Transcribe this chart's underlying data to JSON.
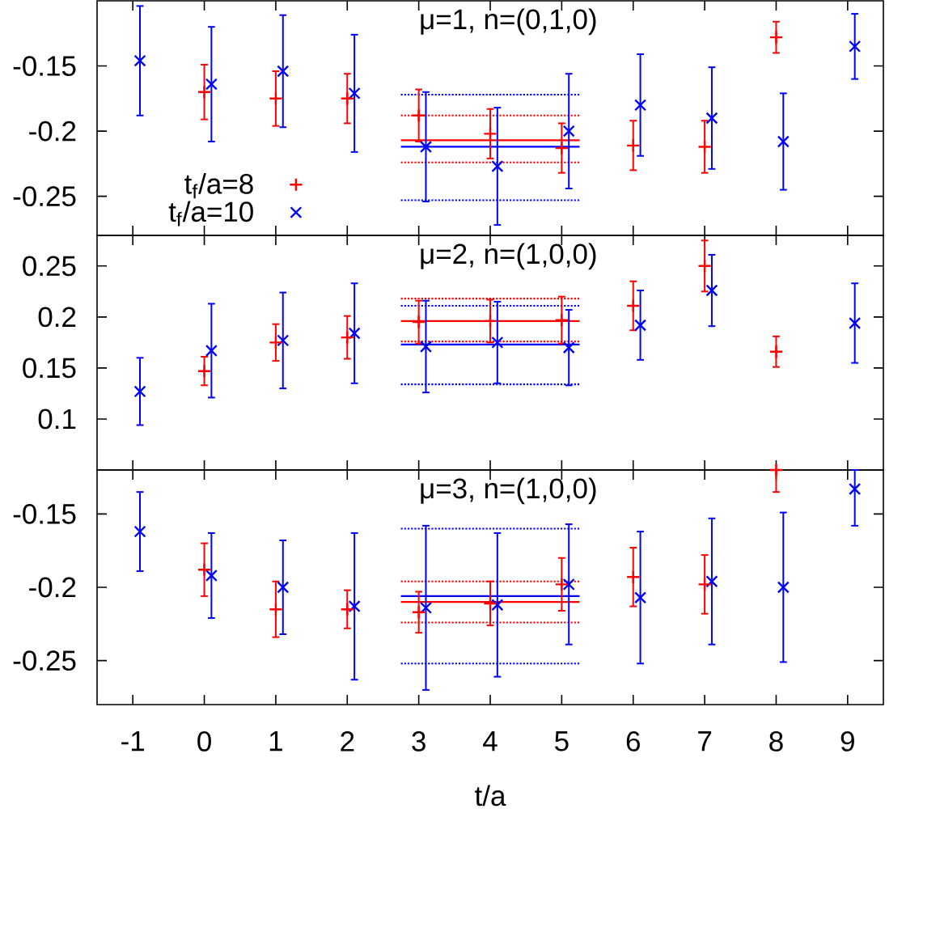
{
  "chart_data": [
    {
      "type": "scatter",
      "title": "μ=1, n=(0,1,0)",
      "xlim": [
        -1.5,
        9.5
      ],
      "xticks": [
        -1,
        0,
        1,
        2,
        3,
        4,
        5,
        6,
        7,
        8,
        9
      ],
      "ylim": [
        -0.28,
        -0.1
      ],
      "yticks": [
        -0.25,
        -0.2,
        -0.15
      ],
      "tick_labels": "y",
      "legend": "bottom left",
      "series": [
        {
          "type": "line",
          "color": "#ff0000",
          "x": [
            2.75,
            5.25
          ],
          "values": [
            -0.207,
            -0.207
          ],
          "line_style": "solid"
        },
        {
          "type": "line",
          "color": "#ff0000",
          "x": [
            2.75,
            5.25
          ],
          "values": [
            -0.188,
            -0.188
          ],
          "line_style": "dotted"
        },
        {
          "type": "line",
          "color": "#ff0000",
          "x": [
            2.75,
            5.25
          ],
          "values": [
            -0.224,
            -0.224
          ],
          "line_style": "dotted"
        },
        {
          "type": "line",
          "color": "#0000ff",
          "x": [
            2.75,
            5.25
          ],
          "values": [
            -0.212,
            -0.212
          ],
          "line_style": "solid"
        },
        {
          "type": "line",
          "color": "#0000ff",
          "x": [
            2.75,
            5.25
          ],
          "values": [
            -0.172,
            -0.172
          ],
          "line_style": "dotted"
        },
        {
          "type": "line",
          "color": "#0000ff",
          "x": [
            2.75,
            5.25
          ],
          "values": [
            -0.253,
            -0.253
          ],
          "line_style": "dotted"
        },
        {
          "name": "t$_{f}$/a=8",
          "color": "#ff0000",
          "marker": "plus",
          "x": [
            0,
            1,
            2,
            3,
            4,
            5,
            6,
            7,
            8
          ],
          "values": [
            -0.17,
            -0.175,
            -0.175,
            -0.188,
            -0.202,
            -0.213,
            -0.211,
            -0.212,
            -0.128
          ],
          "errors": [
            0.021,
            0.021,
            0.019,
            0.02,
            0.019,
            0.019,
            0.019,
            0.02,
            0.012
          ]
        },
        {
          "name": "t$_{f}$/a=10",
          "color": "#0000ff",
          "marker": "cross",
          "x": [
            -0.9,
            0.1,
            1.1,
            2.1,
            3.1,
            4.1,
            5.1,
            6.1,
            7.1,
            8.1,
            9.1
          ],
          "values": [
            -0.146,
            -0.164,
            -0.154,
            -0.171,
            -0.212,
            -0.227,
            -0.2,
            -0.18,
            -0.19,
            -0.208,
            -0.135
          ],
          "errors": [
            0.042,
            0.044,
            0.043,
            0.045,
            0.042,
            0.045,
            0.044,
            0.039,
            0.039,
            0.037,
            0.025
          ]
        }
      ]
    },
    {
      "type": "scatter",
      "title": "μ=2, n=(1,0,0)",
      "xlim": [
        -1.5,
        9.5
      ],
      "xticks": [
        -1,
        0,
        1,
        2,
        3,
        4,
        5,
        6,
        7,
        8,
        9
      ],
      "ylim": [
        0.05,
        0.28
      ],
      "yticks": [
        0.1,
        0.15,
        0.2,
        0.25
      ],
      "tick_labels": "y",
      "series": [
        {
          "type": "line",
          "color": "#ff0000",
          "x": [
            2.75,
            5.25
          ],
          "values": [
            0.196,
            0.196
          ],
          "line_style": "solid"
        },
        {
          "type": "line",
          "color": "#ff0000",
          "x": [
            2.75,
            5.25
          ],
          "values": [
            0.218,
            0.218
          ],
          "line_style": "dotted"
        },
        {
          "type": "line",
          "color": "#ff0000",
          "x": [
            2.75,
            5.25
          ],
          "values": [
            0.176,
            0.176
          ],
          "line_style": "dotted"
        },
        {
          "type": "line",
          "color": "#0000ff",
          "x": [
            2.75,
            5.25
          ],
          "values": [
            0.173,
            0.173
          ],
          "line_style": "solid"
        },
        {
          "type": "line",
          "color": "#0000ff",
          "x": [
            2.75,
            5.25
          ],
          "values": [
            0.211,
            0.211
          ],
          "line_style": "dotted"
        },
        {
          "type": "line",
          "color": "#0000ff",
          "x": [
            2.75,
            5.25
          ],
          "values": [
            0.134,
            0.134
          ],
          "line_style": "dotted"
        },
        {
          "color": "#ff0000",
          "marker": "plus",
          "x": [
            0,
            1,
            2,
            3,
            4,
            5,
            6,
            7,
            8
          ],
          "values": [
            0.147,
            0.175,
            0.18,
            0.195,
            0.196,
            0.197,
            0.211,
            0.25,
            0.166
          ],
          "errors": [
            0.014,
            0.018,
            0.021,
            0.021,
            0.021,
            0.023,
            0.024,
            0.025,
            0.015
          ]
        },
        {
          "color": "#0000ff",
          "marker": "cross",
          "x": [
            -0.9,
            0.1,
            1.1,
            2.1,
            3.1,
            4.1,
            5.1,
            6.1,
            7.1,
            9.1
          ],
          "values": [
            0.127,
            0.167,
            0.177,
            0.184,
            0.171,
            0.175,
            0.17,
            0.192,
            0.226,
            0.194
          ],
          "errors": [
            0.033,
            0.046,
            0.047,
            0.049,
            0.045,
            0.04,
            0.037,
            0.034,
            0.035,
            0.039
          ]
        }
      ]
    },
    {
      "type": "scatter",
      "title": "μ=3, n=(1,0,0)",
      "xlabel": "t/a",
      "xlim": [
        -1.5,
        9.5
      ],
      "xticks": [
        -1,
        0,
        1,
        2,
        3,
        4,
        5,
        6,
        7,
        8,
        9
      ],
      "ylim": [
        -0.28,
        -0.12
      ],
      "yticks": [
        -0.25,
        -0.2,
        -0.15
      ],
      "series": [
        {
          "type": "line",
          "color": "#ff0000",
          "x": [
            2.75,
            5.25
          ],
          "values": [
            -0.21,
            -0.21
          ],
          "line_style": "solid"
        },
        {
          "type": "line",
          "color": "#ff0000",
          "x": [
            2.75,
            5.25
          ],
          "values": [
            -0.196,
            -0.196
          ],
          "line_style": "dotted"
        },
        {
          "type": "line",
          "color": "#ff0000",
          "x": [
            2.75,
            5.25
          ],
          "values": [
            -0.224,
            -0.224
          ],
          "line_style": "dotted"
        },
        {
          "type": "line",
          "color": "#0000ff",
          "x": [
            2.75,
            5.25
          ],
          "values": [
            -0.206,
            -0.206
          ],
          "line_style": "solid"
        },
        {
          "type": "line",
          "color": "#0000ff",
          "x": [
            2.75,
            5.25
          ],
          "values": [
            -0.16,
            -0.16
          ],
          "line_style": "dotted"
        },
        {
          "type": "line",
          "color": "#0000ff",
          "x": [
            2.75,
            5.25
          ],
          "values": [
            -0.252,
            -0.252
          ],
          "line_style": "dotted"
        },
        {
          "color": "#ff0000",
          "marker": "plus",
          "x": [
            0,
            1,
            2,
            3,
            4,
            5,
            6,
            7,
            8
          ],
          "values": [
            -0.188,
            -0.215,
            -0.215,
            -0.217,
            -0.211,
            -0.198,
            -0.193,
            -0.198,
            -0.12
          ],
          "errors": [
            0.018,
            0.019,
            0.013,
            0.014,
            0.015,
            0.018,
            0.02,
            0.02,
            [
              -0.135,
              -0.12
            ]
          ]
        },
        {
          "color": "#0000ff",
          "marker": "cross",
          "x": [
            -0.9,
            0.1,
            1.1,
            2.1,
            3.1,
            4.1,
            5.1,
            6.1,
            7.1,
            8.1,
            9.1
          ],
          "values": [
            -0.162,
            -0.192,
            -0.2,
            -0.213,
            -0.214,
            -0.212,
            -0.198,
            -0.207,
            -0.196,
            -0.2,
            -0.133
          ],
          "errors": [
            0.027,
            0.029,
            0.032,
            0.05,
            0.056,
            0.049,
            0.041,
            0.045,
            0.043,
            0.051,
            [
              -0.158,
              -0.12
            ]
          ]
        }
      ]
    }
  ]
}
